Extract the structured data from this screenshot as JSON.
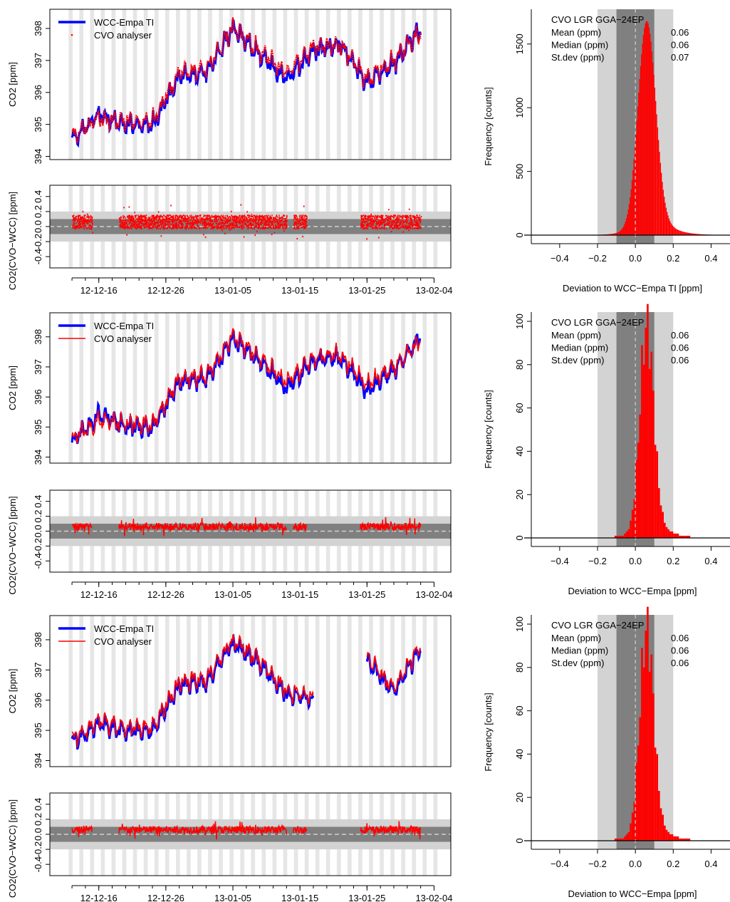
{
  "colors": {
    "wcc": "#0000ff",
    "cvo": "#ff0000",
    "band_inner": "#808080",
    "band_outer": "#d3d3d3",
    "night": "#e6e6e6",
    "hist": "#ff0000"
  },
  "x_ticks": [
    "12-12-16",
    "12-12-26",
    "13-01-05",
    "13-01-15",
    "13-01-25",
    "13-02-04"
  ],
  "chart_data": [
    {
      "type": "line",
      "panel": "row1-timeseries",
      "xlabel": "",
      "ylabel": "CO2 [ppm]",
      "ylim": [
        393.9,
        398.6
      ],
      "yticks": [
        "394",
        "395",
        "396",
        "397",
        "398"
      ],
      "legend": [
        "WCC-Empa TI",
        "CVO analyser"
      ],
      "legend_position": "top-left",
      "cvo_style": "points",
      "x": [
        "12-12-12",
        "12-12-16",
        "12-12-20",
        "12-12-24",
        "12-12-28",
        "13-01-01",
        "13-01-05",
        "13-01-09",
        "13-01-13",
        "13-01-17",
        "13-01-21",
        "13-01-25",
        "13-01-29",
        "13-02-02"
      ],
      "series": [
        {
          "name": "WCC-Empa TI",
          "values": [
            394.5,
            395.3,
            395.0,
            395.0,
            396.5,
            396.6,
            398.0,
            397.2,
            396.4,
            397.3,
            397.5,
            396.3,
            396.9,
            398.0
          ]
        },
        {
          "name": "CVO analyser",
          "values": [
            394.6,
            395.2,
            395.1,
            395.1,
            396.6,
            396.7,
            398.0,
            397.3,
            396.6,
            397.4,
            397.5,
            396.4,
            397.0,
            397.9
          ]
        }
      ]
    },
    {
      "type": "scatter",
      "panel": "row1-difference",
      "ylabel": "CO2(CVO−WCC) [ppm]",
      "ylim": [
        -0.55,
        0.55
      ],
      "yticks": [
        "0.4",
        "0.2",
        "0.0",
        "-0.2",
        "-0.4"
      ],
      "bands": {
        "inner": 0.1,
        "outer": 0.2
      },
      "segments": [
        [
          "12-12-12",
          "12-12-15"
        ],
        [
          "12-12-19",
          "13-01-13"
        ],
        [
          "13-01-14",
          "13-01-16"
        ],
        [
          "13-01-24",
          "13-02-02"
        ]
      ],
      "spread": 0.18
    },
    {
      "type": "bar",
      "panel": "row1-histogram",
      "xlabel": "Deviation to WCC−Empa TI [ppm]",
      "ylabel": "Frequency [counts]",
      "xlim": [
        -0.55,
        0.5
      ],
      "ylim": [
        0,
        1700
      ],
      "xticks": [
        "-0.4",
        "-0.2",
        "0.0",
        "0.2",
        "0.4"
      ],
      "yticks": [
        "0",
        "500",
        "1000",
        "1500"
      ],
      "peak": 1680,
      "center": 0.06,
      "sigma": 0.045,
      "tail": 0.07,
      "instrument": "CVO LGR GGA−24EP",
      "stats": [
        {
          "label": "Mean (ppm)",
          "value": "0.06"
        },
        {
          "label": "Median (ppm)",
          "value": "0.06"
        },
        {
          "label": "St.dev (ppm)",
          "value": "0.07"
        }
      ]
    },
    {
      "type": "line",
      "panel": "row2-timeseries",
      "xlabel": "",
      "ylabel": "CO2 [ppm]",
      "ylim": [
        393.8,
        398.8
      ],
      "yticks": [
        "394",
        "395",
        "396",
        "397",
        "398"
      ],
      "legend": [
        "WCC-Empa TI",
        "CVO analyser"
      ],
      "legend_position": "top-left",
      "cvo_style": "line",
      "x": [
        "12-12-12",
        "12-12-16",
        "12-12-20",
        "12-12-24",
        "12-12-28",
        "13-01-01",
        "13-01-05",
        "13-01-09",
        "13-01-13",
        "13-01-17",
        "13-01-21",
        "13-01-25",
        "13-01-29",
        "13-02-02"
      ],
      "series": [
        {
          "name": "WCC-Empa TI",
          "values": [
            394.5,
            395.4,
            395.0,
            395.0,
            396.5,
            396.6,
            397.9,
            397.2,
            396.3,
            397.2,
            397.3,
            396.2,
            396.9,
            398.0
          ]
        },
        {
          "name": "CVO analyser",
          "values": [
            394.6,
            395.2,
            395.1,
            395.1,
            396.6,
            396.7,
            398.0,
            397.3,
            396.5,
            397.3,
            397.4,
            396.4,
            397.0,
            397.9
          ]
        }
      ]
    },
    {
      "type": "line",
      "panel": "row2-difference",
      "ylabel": "CO2(CVO−WCC) [ppm]",
      "ylim": [
        -0.55,
        0.55
      ],
      "yticks": [
        "0.4",
        "0.2",
        "0.0",
        "-0.2",
        "-0.4"
      ],
      "bands": {
        "inner": 0.1,
        "outer": 0.2
      },
      "segments": [
        [
          "12-12-12",
          "12-12-15"
        ],
        [
          "12-12-19",
          "13-01-13"
        ],
        [
          "13-01-14",
          "13-01-16"
        ],
        [
          "13-01-24",
          "13-02-02"
        ]
      ],
      "spread": 0.1
    },
    {
      "type": "bar",
      "panel": "row2-histogram",
      "xlabel": "Deviation to WCC−Empa [ppm]",
      "ylabel": "Frequency [counts]",
      "xlim": [
        -0.55,
        0.5
      ],
      "ylim": [
        0,
        100
      ],
      "xticks": [
        "-0.4",
        "-0.2",
        "0.0",
        "0.2",
        "0.4"
      ],
      "yticks": [
        "0",
        "20",
        "40",
        "60",
        "80",
        "100"
      ],
      "peak": 98,
      "center": 0.06,
      "sigma": 0.035,
      "tail": 0.06,
      "instrument": "CVO LGR GGA−24EP",
      "stats": [
        {
          "label": "Mean (ppm)",
          "value": "0.06"
        },
        {
          "label": "Median (ppm)",
          "value": "0.06"
        },
        {
          "label": "St.dev (ppm)",
          "value": "0.06"
        }
      ]
    },
    {
      "type": "line",
      "panel": "row3-timeseries",
      "xlabel": "",
      "ylabel": "CO2 [ppm]",
      "ylim": [
        393.8,
        398.8
      ],
      "yticks": [
        "394",
        "395",
        "396",
        "397",
        "398"
      ],
      "legend": [
        "WCC-Empa TI",
        "CVO analyser"
      ],
      "legend_position": "top-left",
      "cvo_style": "line",
      "x": [
        "12-12-12",
        "12-12-16",
        "12-12-20",
        "12-12-24",
        "12-12-28",
        "13-01-01",
        "13-01-05",
        "13-01-09",
        "13-01-13",
        "13-01-17",
        "13-01-21",
        "13-01-25",
        "13-01-29",
        "13-02-02"
      ],
      "series": [
        {
          "name": "WCC-Empa TI",
          "values": [
            394.6,
            395.2,
            395.0,
            395.0,
            396.5,
            396.6,
            397.9,
            397.2,
            396.2,
            396.0,
            null,
            397.3,
            396.3,
            397.7
          ]
        },
        {
          "name": "CVO analyser",
          "values": [
            394.7,
            395.3,
            395.1,
            395.1,
            396.6,
            396.7,
            398.0,
            397.3,
            396.3,
            396.1,
            null,
            397.4,
            396.4,
            397.8
          ]
        }
      ]
    },
    {
      "type": "line",
      "panel": "row3-difference",
      "ylabel": "CO2(CVO−WCC) [ppm]",
      "ylim": [
        -0.55,
        0.55
      ],
      "yticks": [
        "0.4",
        "0.2",
        "0.0",
        "-0.2",
        "-0.4"
      ],
      "bands": {
        "inner": 0.1,
        "outer": 0.2
      },
      "segments": [
        [
          "12-12-12",
          "12-12-15"
        ],
        [
          "12-12-19",
          "13-01-13"
        ],
        [
          "13-01-14",
          "13-01-16"
        ],
        [
          "13-01-24",
          "13-02-02"
        ]
      ],
      "spread": 0.1
    },
    {
      "type": "bar",
      "panel": "row3-histogram",
      "xlabel": "Deviation to WCC−Empa [ppm]",
      "ylabel": "Frequency [counts]",
      "xlim": [
        -0.55,
        0.5
      ],
      "ylim": [
        0,
        100
      ],
      "xticks": [
        "-0.4",
        "-0.2",
        "0.0",
        "0.2",
        "0.4"
      ],
      "yticks": [
        "0",
        "20",
        "40",
        "60",
        "80",
        "100"
      ],
      "peak": 98,
      "center": 0.06,
      "sigma": 0.035,
      "tail": 0.06,
      "instrument": "CVO LGR GGA−24EP",
      "stats": [
        {
          "label": "Mean (ppm)",
          "value": "0.06"
        },
        {
          "label": "Median (ppm)",
          "value": "0.06"
        },
        {
          "label": "St.dev (ppm)",
          "value": "0.06"
        }
      ]
    }
  ]
}
